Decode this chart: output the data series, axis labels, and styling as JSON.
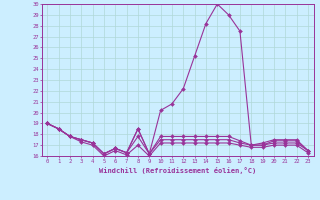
{
  "xlabel": "Windchill (Refroidissement éolien,°C)",
  "hours": [
    0,
    1,
    2,
    3,
    4,
    5,
    6,
    7,
    8,
    9,
    10,
    11,
    12,
    13,
    14,
    15,
    16,
    17,
    18,
    19,
    20,
    21,
    22,
    23
  ],
  "line1": [
    19.0,
    18.5,
    17.8,
    17.5,
    17.2,
    16.2,
    16.7,
    16.3,
    18.5,
    16.2,
    20.2,
    20.8,
    22.2,
    25.2,
    28.2,
    30.0,
    29.0,
    27.5,
    17.0,
    17.2,
    17.5,
    17.5,
    17.5,
    16.5
  ],
  "line2": [
    19.0,
    18.5,
    17.8,
    17.5,
    17.2,
    16.2,
    16.7,
    16.3,
    18.5,
    16.2,
    17.5,
    17.5,
    17.5,
    17.5,
    17.5,
    17.5,
    17.5,
    17.2,
    17.0,
    17.0,
    17.2,
    17.2,
    17.2,
    16.5
  ],
  "line3": [
    19.0,
    18.5,
    17.8,
    17.3,
    17.0,
    16.0,
    16.5,
    16.1,
    17.0,
    16.0,
    17.2,
    17.2,
    17.2,
    17.2,
    17.2,
    17.2,
    17.2,
    17.0,
    16.8,
    16.8,
    17.0,
    17.0,
    17.0,
    16.3
  ],
  "line4": [
    19.0,
    18.5,
    17.8,
    17.5,
    17.2,
    16.2,
    16.7,
    16.3,
    17.8,
    16.2,
    17.8,
    17.8,
    17.8,
    17.8,
    17.8,
    17.8,
    17.8,
    17.4,
    17.0,
    17.0,
    17.4,
    17.4,
    17.4,
    16.5
  ],
  "line_color": "#993399",
  "bg_color": "#cceeff",
  "grid_color": "#aadddd",
  "ylim": [
    16,
    30
  ],
  "yticks": [
    16,
    17,
    18,
    19,
    20,
    21,
    22,
    23,
    24,
    25,
    26,
    27,
    28,
    29,
    30
  ],
  "markersize": 2.0,
  "linewidth": 0.8
}
